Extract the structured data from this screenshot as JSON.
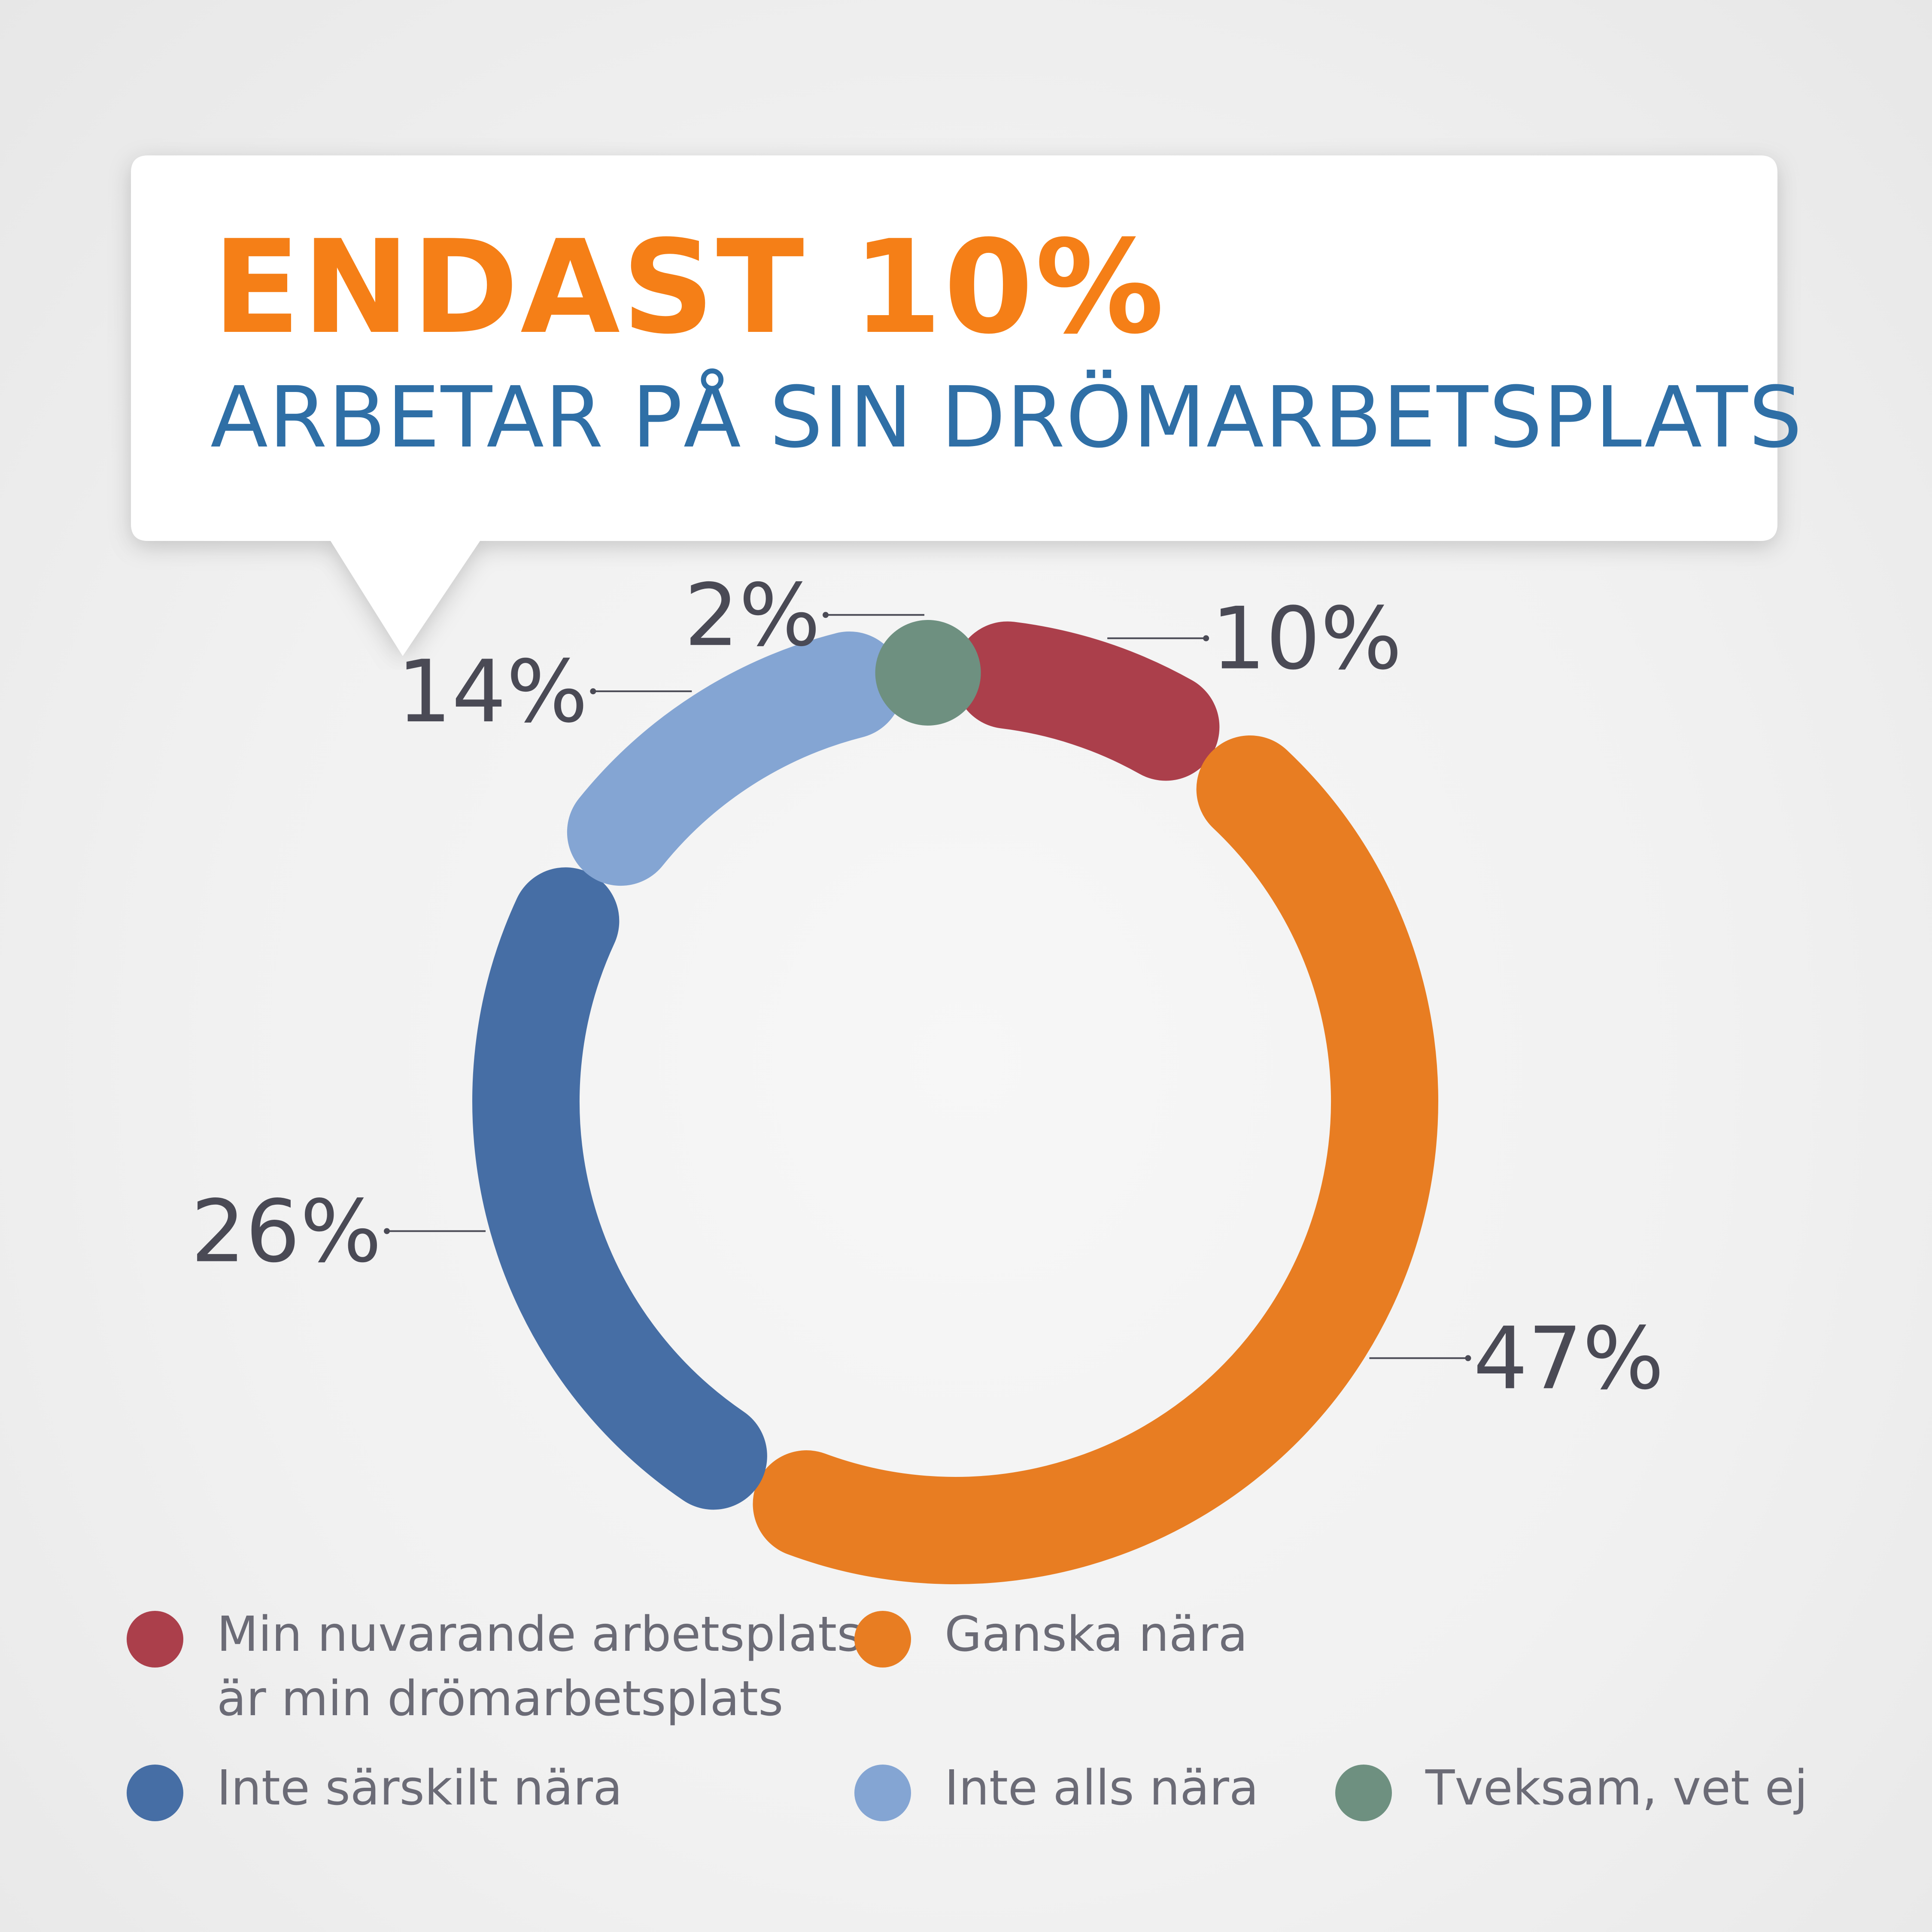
{
  "header": {
    "title": "ENDAST 10%",
    "subtitle": "ARBETAR PÅ SIN DRÖMARBETSPLATS"
  },
  "colors": {
    "title": "#f57f17",
    "subtitle": "#2f6fa6",
    "text": "#4a4a55"
  },
  "chart_data": {
    "type": "pie",
    "variant": "donut",
    "title": "",
    "series": [
      {
        "name": "Min nuvarande arbetsplats\när min drömarbetsplats",
        "value": 10,
        "label": "10%",
        "color": "#ab3f4b"
      },
      {
        "name": "Ganska nära",
        "value": 47,
        "label": "47%",
        "color": "#e87d22"
      },
      {
        "name": "Inte särskilt nära",
        "value": 26,
        "label": "26%",
        "color": "#466ea5"
      },
      {
        "name": "Inte alls nära",
        "value": 14,
        "label": "14%",
        "color": "#84a5d3"
      },
      {
        "name": "Tveksam, vet ej",
        "value": 2,
        "label": "2%",
        "color": "#6e9080"
      }
    ],
    "legend_position": "bottom"
  }
}
